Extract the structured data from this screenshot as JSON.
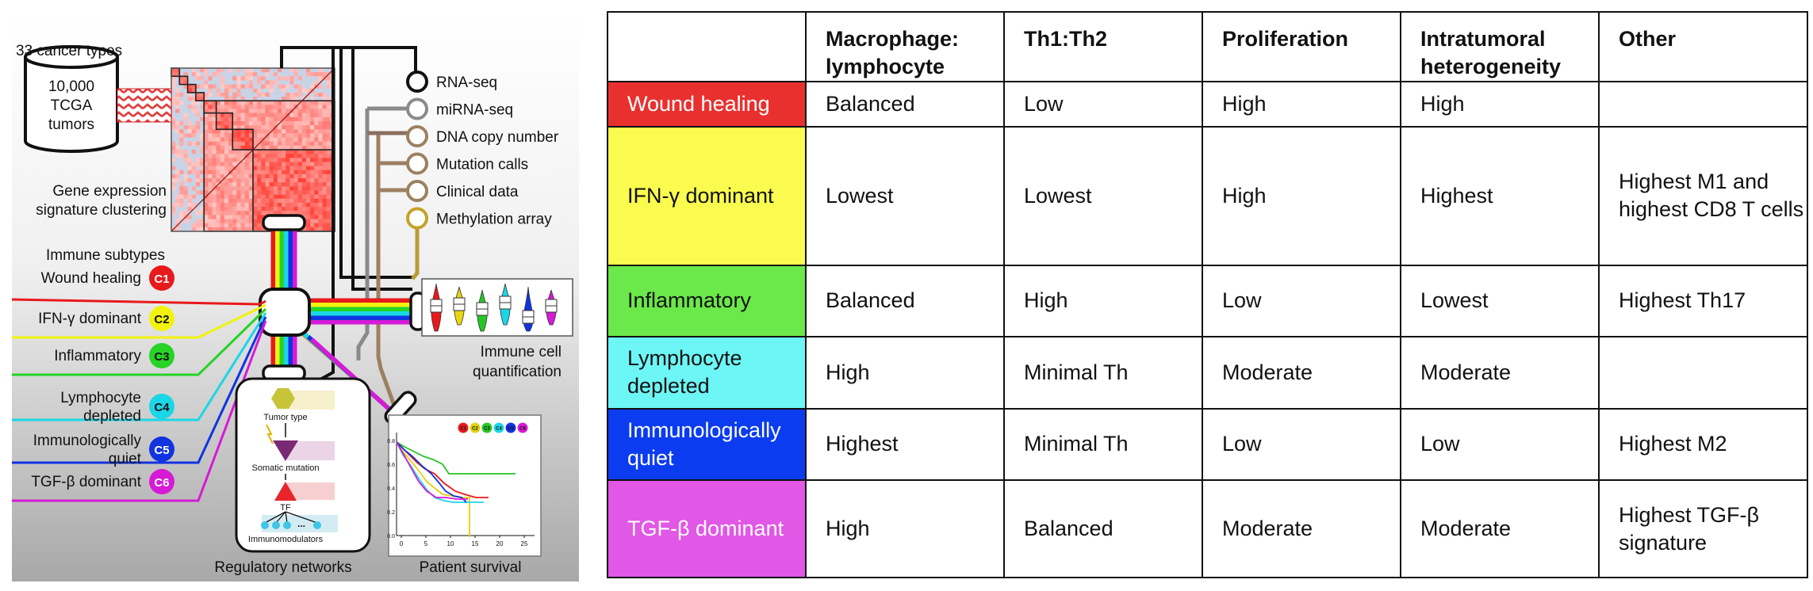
{
  "diagram": {
    "cancer_types": "33 cancer types",
    "tumors": [
      "10,000",
      "TCGA",
      "tumors"
    ],
    "clustering": [
      "Gene expression",
      "signature clustering"
    ],
    "immune_subtypes_title": "Immune subtypes",
    "subtypes": [
      {
        "code": "C1",
        "label": [
          "Wound healing"
        ],
        "color": "#e8191b"
      },
      {
        "code": "C2",
        "label": [
          "IFN-γ dominant"
        ],
        "color": "#f2f20f"
      },
      {
        "code": "C3",
        "label": [
          "Inflammatory"
        ],
        "color": "#26d326"
      },
      {
        "code": "C4",
        "label": [
          "Lymphocyte",
          "depleted"
        ],
        "color": "#1ad6e6"
      },
      {
        "code": "C5",
        "label": [
          "Immunologically",
          "quiet"
        ],
        "color": "#1133e0"
      },
      {
        "code": "C6",
        "label": [
          "TGF-β dominant"
        ],
        "color": "#d61ad6"
      }
    ],
    "data_types": [
      "RNA-seq",
      "miRNA-seq",
      "DNA copy number",
      "Mutation calls",
      "Clinical data",
      "Methylation array"
    ],
    "quantification": [
      "Immune cell",
      "quantification"
    ],
    "regulatory_networks": "Regulatory networks",
    "network_labels": {
      "tumor_type": "Tumor type",
      "somatic_mutation": "Somatic mutation",
      "tf": "TF",
      "immunomodulators": "Immunomodulators",
      "dots": "..."
    },
    "patient_survival": "Patient survival",
    "survival_axis": {
      "x_ticks": [
        "0",
        "5",
        "10",
        "15",
        "20",
        "25"
      ],
      "y_ticks": [
        "0.0",
        "0.2",
        "0.4",
        "0.6",
        "0.8"
      ]
    },
    "survival_legend": [
      "C1",
      "C2",
      "C3",
      "C4",
      "C5",
      "C6"
    ]
  },
  "table": {
    "headers": [
      "",
      "Macrophage: lymphocyte",
      "Th1:Th2",
      "Proliferation",
      "Intratumoral heterogeneity",
      "Other"
    ],
    "rows": [
      {
        "label": "Wound healing",
        "color": "#e8312f",
        "cells": [
          "Balanced",
          "Low",
          "High",
          "High",
          ""
        ]
      },
      {
        "label": "IFN-γ dominant",
        "color": "#fbfb4f",
        "cells": [
          "Lowest",
          "Lowest",
          "High",
          "Highest",
          "Highest M1 and highest CD8 T cells"
        ]
      },
      {
        "label": "Inflammatory",
        "color": "#6be84a",
        "cells": [
          "Balanced",
          "High",
          "Low",
          "Lowest",
          "Highest Th17"
        ]
      },
      {
        "label": "Lymphocyte depleted",
        "color": "#6df6f6",
        "cells": [
          "High",
          "Minimal Th",
          "Moderate",
          "Moderate",
          ""
        ]
      },
      {
        "label": "Immunologically quiet",
        "color": "#0b3cf0",
        "cells": [
          "Highest",
          "Minimal Th",
          "Low",
          "Low",
          "Highest M2"
        ]
      },
      {
        "label": "TGF-β dominant",
        "color": "#e157e6",
        "cells": [
          "High",
          "Balanced",
          "Moderate",
          "Moderate",
          "Highest TGF-β signature"
        ]
      }
    ]
  }
}
